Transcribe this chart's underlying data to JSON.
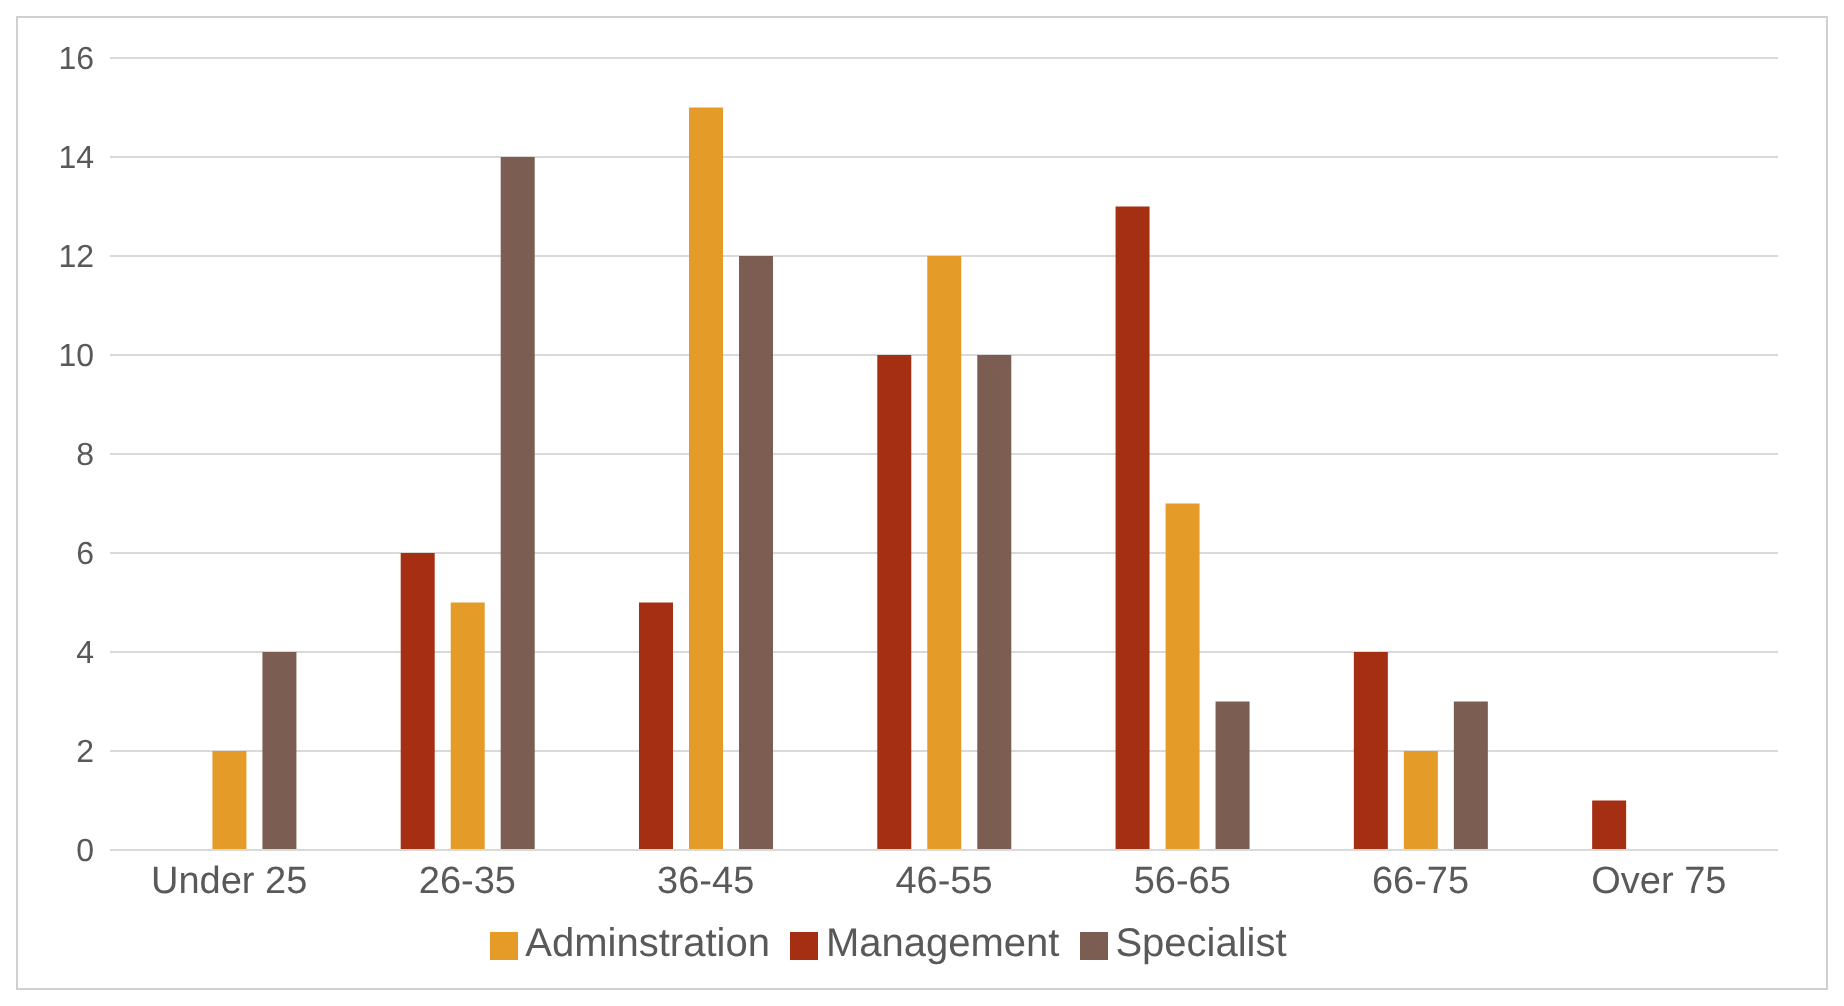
{
  "chart_data": {
    "type": "bar",
    "categories": [
      "Under 25",
      "26-35",
      "36-45",
      "46-55",
      "56-65",
      "66-75",
      "Over 75"
    ],
    "series": [
      {
        "name": "Management",
        "color": "#a52f13",
        "values": [
          0,
          6,
          5,
          10,
          13,
          4,
          1
        ]
      },
      {
        "name": "Adminstration",
        "color": "#e59b27",
        "values": [
          2,
          5,
          15,
          12,
          7,
          2,
          0
        ]
      },
      {
        "name": "Specialist",
        "color": "#7b5d51",
        "values": [
          4,
          14,
          12,
          10,
          3,
          3,
          0
        ]
      }
    ],
    "ylim": [
      0,
      16
    ],
    "yticks": [
      0,
      2,
      4,
      6,
      8,
      10,
      12,
      14,
      16
    ],
    "grid": "y",
    "legend": "bottom"
  }
}
